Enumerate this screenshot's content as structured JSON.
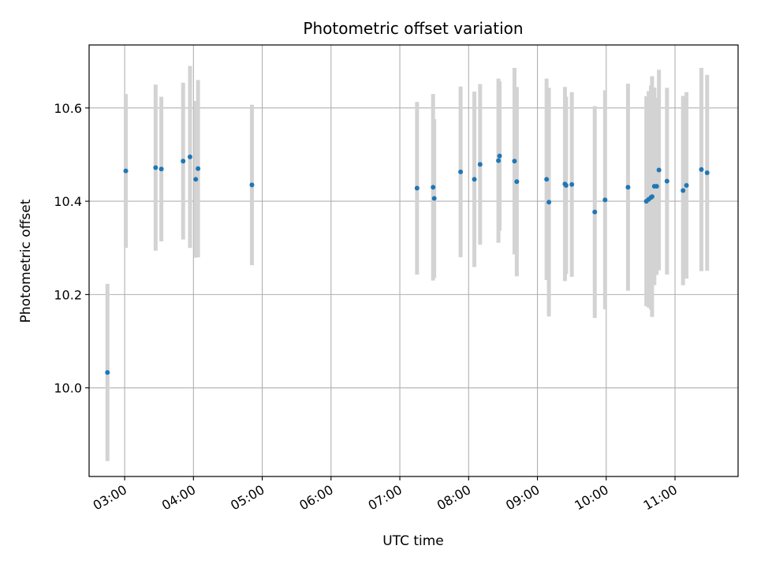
{
  "chart_data": {
    "type": "scatter",
    "title": "Photometric offset variation",
    "xlabel": "UTC time",
    "ylabel": "Photometric offset",
    "xlim": [
      "02:29",
      "11:55"
    ],
    "ylim": [
      9.81,
      10.735
    ],
    "grid": true,
    "xticks": [
      "03:00",
      "04:00",
      "05:00",
      "06:00",
      "07:00",
      "08:00",
      "09:00",
      "10:00",
      "11:00"
    ],
    "yticks": [
      10.0,
      10.2,
      10.4,
      10.6
    ],
    "series_color": "#1f77b4",
    "errorbar_color": "#d3d3d3",
    "points": [
      {
        "t": "02:45",
        "y": 10.033,
        "err": 0.19
      },
      {
        "t": "03:01",
        "y": 10.465,
        "err": 0.165
      },
      {
        "t": "03:27",
        "y": 10.472,
        "err": 0.178
      },
      {
        "t": "03:32",
        "y": 10.469,
        "err": 0.155
      },
      {
        "t": "03:51",
        "y": 10.486,
        "err": 0.168
      },
      {
        "t": "03:57",
        "y": 10.495,
        "err": 0.195
      },
      {
        "t": "04:02",
        "y": 10.447,
        "err": 0.168
      },
      {
        "t": "04:04",
        "y": 10.47,
        "err": 0.19
      },
      {
        "t": "04:51",
        "y": 10.435,
        "err": 0.172
      },
      {
        "t": "07:15",
        "y": 10.428,
        "err": 0.185
      },
      {
        "t": "07:29",
        "y": 10.43,
        "err": 0.2
      },
      {
        "t": "07:30",
        "y": 10.406,
        "err": 0.17
      },
      {
        "t": "07:53",
        "y": 10.463,
        "err": 0.183
      },
      {
        "t": "08:05",
        "y": 10.447,
        "err": 0.188
      },
      {
        "t": "08:10",
        "y": 10.479,
        "err": 0.172
      },
      {
        "t": "08:26",
        "y": 10.487,
        "err": 0.176
      },
      {
        "t": "08:27",
        "y": 10.497,
        "err": 0.16
      },
      {
        "t": "08:40",
        "y": 10.486,
        "err": 0.2
      },
      {
        "t": "08:42",
        "y": 10.442,
        "err": 0.203
      },
      {
        "t": "09:08",
        "y": 10.447,
        "err": 0.216
      },
      {
        "t": "09:10",
        "y": 10.398,
        "err": 0.245
      },
      {
        "t": "09:24",
        "y": 10.437,
        "err": 0.208
      },
      {
        "t": "09:25",
        "y": 10.434,
        "err": 0.19
      },
      {
        "t": "09:30",
        "y": 10.436,
        "err": 0.198
      },
      {
        "t": "09:50",
        "y": 10.377,
        "err": 0.227
      },
      {
        "t": "09:59",
        "y": 10.403,
        "err": 0.235
      },
      {
        "t": "10:19",
        "y": 10.43,
        "err": 0.222
      },
      {
        "t": "10:35",
        "y": 10.4,
        "err": 0.225
      },
      {
        "t": "10:37",
        "y": 10.404,
        "err": 0.232
      },
      {
        "t": "10:39",
        "y": 10.408,
        "err": 0.24
      },
      {
        "t": "10:40",
        "y": 10.41,
        "err": 0.258
      },
      {
        "t": "10:42",
        "y": 10.432,
        "err": 0.212
      },
      {
        "t": "10:44",
        "y": 10.432,
        "err": 0.19
      },
      {
        "t": "10:46",
        "y": 10.467,
        "err": 0.215
      },
      {
        "t": "10:53",
        "y": 10.443,
        "err": 0.2
      },
      {
        "t": "11:07",
        "y": 10.423,
        "err": 0.203
      },
      {
        "t": "11:10",
        "y": 10.434,
        "err": 0.2
      },
      {
        "t": "11:23",
        "y": 10.468,
        "err": 0.218
      },
      {
        "t": "11:28",
        "y": 10.461,
        "err": 0.21
      }
    ]
  }
}
